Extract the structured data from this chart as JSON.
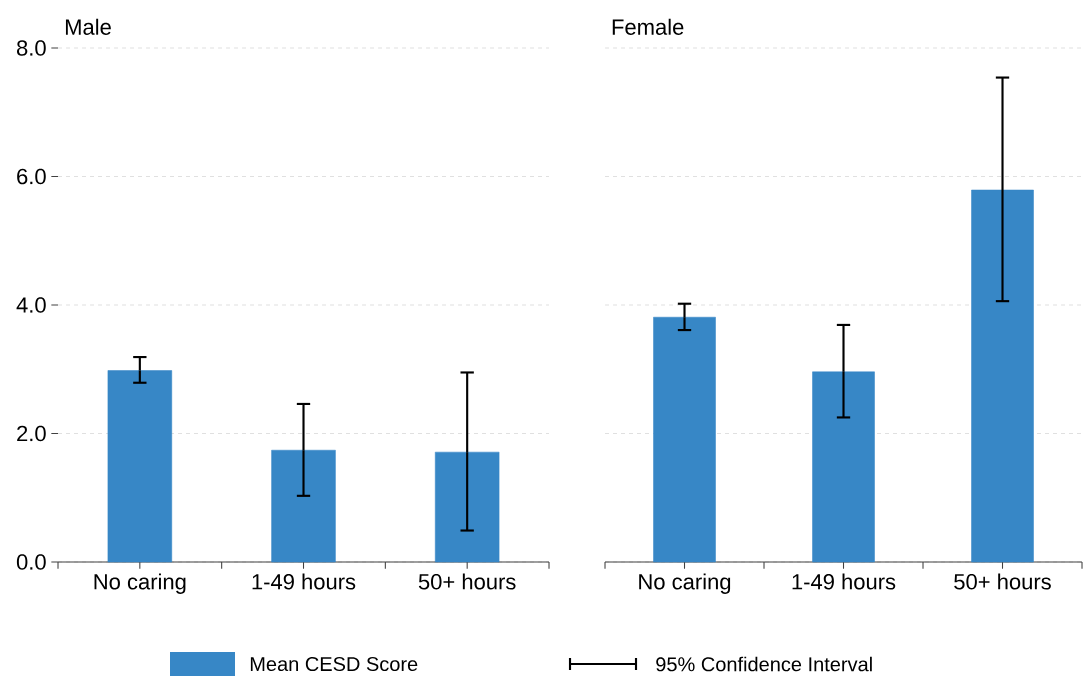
{
  "chart_data": [
    {
      "type": "bar",
      "title": "Male",
      "categories": [
        "No caring",
        "1-49 hours",
        "50+ hours"
      ],
      "series": [
        {
          "name": "Mean CESD Score",
          "color": "#3787c6",
          "values": [
            2.98,
            1.74,
            1.71
          ],
          "errors": [
            [
              2.79,
              3.19
            ],
            [
              1.03,
              2.46
            ],
            [
              0.49,
              2.95
            ]
          ]
        }
      ],
      "ylim": [
        0,
        8
      ],
      "yticks": [
        {
          "value": 0,
          "label": "0.0"
        },
        {
          "value": 2,
          "label": "2.0"
        },
        {
          "value": 4,
          "label": "4.0"
        },
        {
          "value": 6,
          "label": "6.0"
        },
        {
          "value": 8,
          "label": "8.0"
        }
      ],
      "grid": "y",
      "legend": "bottom",
      "annotations": [
        "95% Confidence Interval"
      ]
    },
    {
      "type": "bar",
      "title": "Female",
      "categories": [
        "No caring",
        "1-49 hours",
        "50+ hours"
      ],
      "series": [
        {
          "color": "#3787c6",
          "values": [
            3.81,
            2.96,
            5.79
          ],
          "errors": [
            [
              3.61,
              4.02
            ],
            [
              2.25,
              3.69
            ],
            [
              4.06,
              7.54
            ]
          ]
        }
      ],
      "ylim": [
        0,
        8
      ],
      "yticks": [
        0,
        2,
        4,
        6,
        8
      ],
      "grid": "y",
      "tick_labels": "x"
    }
  ]
}
